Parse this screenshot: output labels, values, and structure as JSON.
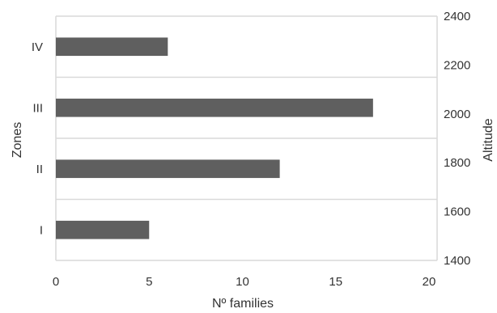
{
  "chart_data": {
    "type": "bar",
    "orientation": "horizontal",
    "categories": [
      "I",
      "II",
      "III",
      "IV"
    ],
    "values": [
      5,
      12,
      17,
      6
    ],
    "xlabel": "Nº families",
    "ylabel": "Zones",
    "y2label": "Altitude",
    "xlim": [
      0,
      20
    ],
    "xticks": [
      "0",
      "5",
      "10",
      "15",
      "20"
    ],
    "y2lim": [
      1400,
      2400
    ],
    "y2ticks": [
      "1400",
      "1600",
      "1800",
      "2000",
      "2200",
      "2400"
    ],
    "grid": "horizontal",
    "legend": "none",
    "bar_color": "#5f5f5f",
    "grid_color": "#d9d9d9"
  }
}
